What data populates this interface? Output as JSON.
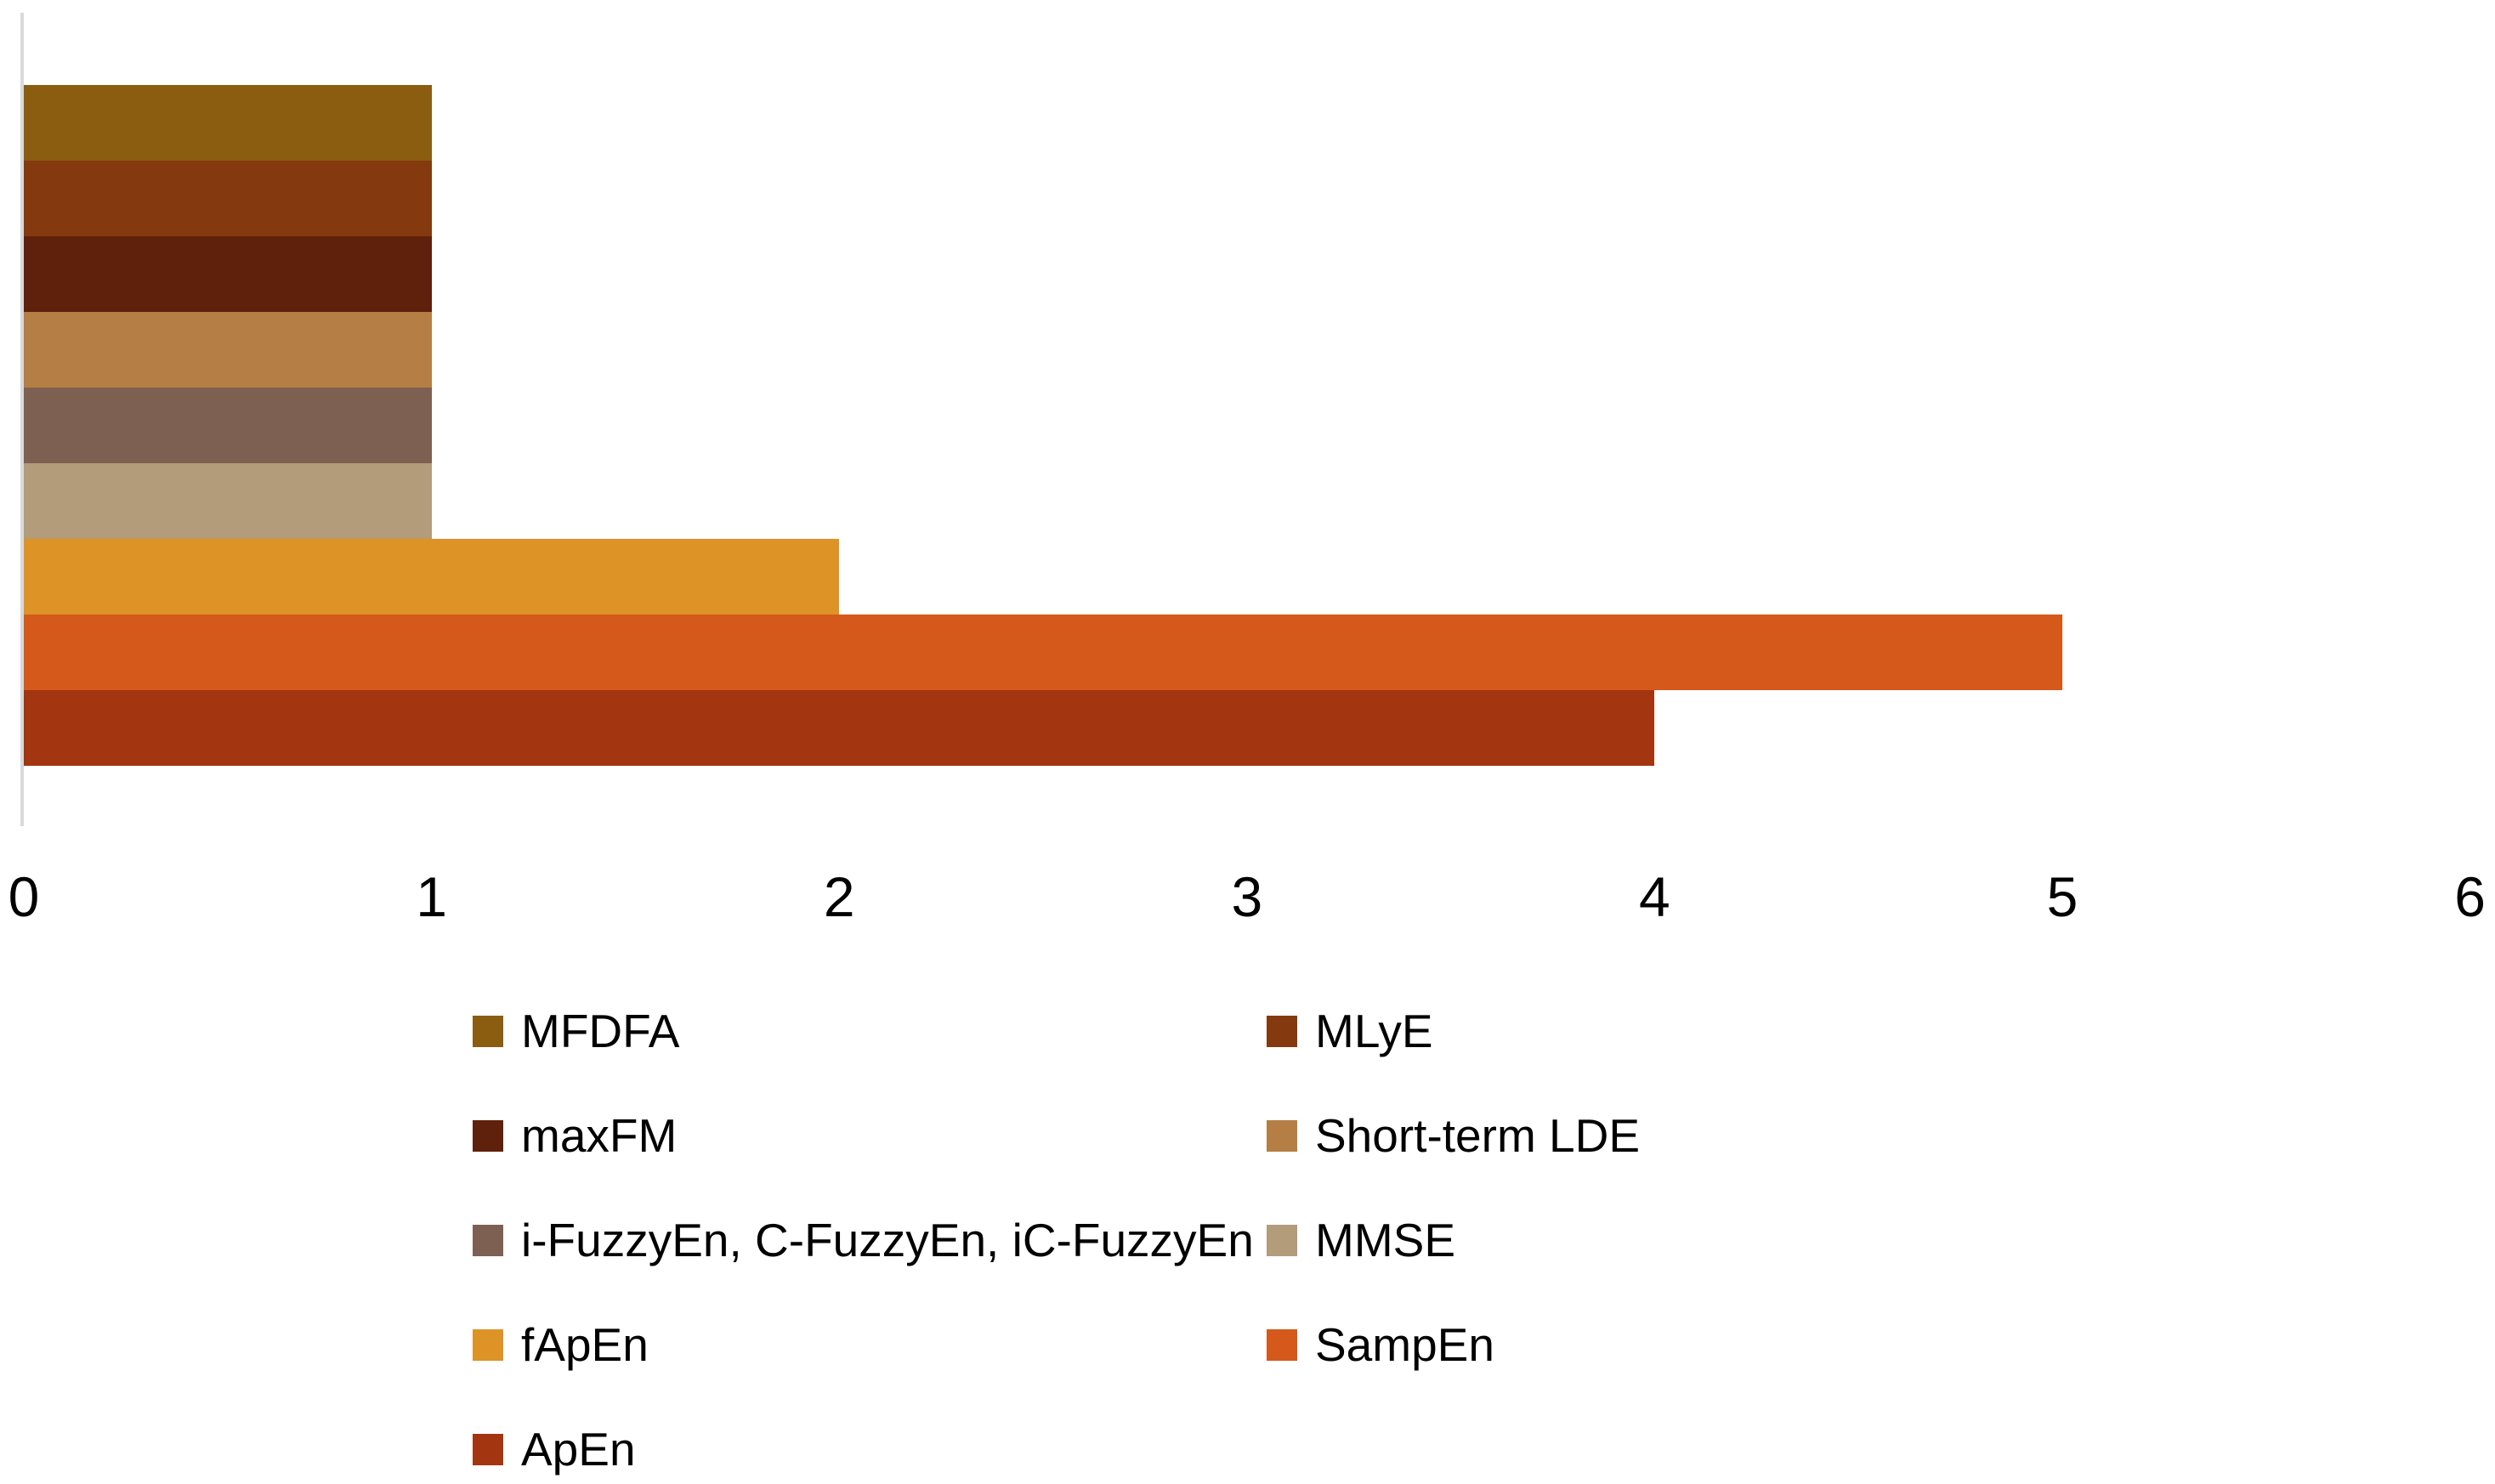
{
  "chart_data": {
    "type": "bar",
    "orientation": "horizontal",
    "title": "",
    "xlabel": "",
    "ylabel": "",
    "xlim": [
      0,
      6
    ],
    "x_ticks": [
      "0",
      "1",
      "2",
      "3",
      "4",
      "5",
      "6"
    ],
    "grid": false,
    "legend_position": "bottom",
    "legend_columns": 2,
    "axis_line_color": "#D9D9D9",
    "text_color": "#000000",
    "series": [
      {
        "name": "MFDFA",
        "value": 1,
        "color": "#8A5D11"
      },
      {
        "name": "MLyE",
        "value": 1,
        "color": "#843A0E"
      },
      {
        "name": "maxFM",
        "value": 1,
        "color": "#5F200C"
      },
      {
        "name": "Short-term LDE",
        "value": 1,
        "color": "#B47E44"
      },
      {
        "name": "i-FuzzyEn, C-FuzzyEn, iC-FuzzyEn",
        "value": 1,
        "color": "#7E6052"
      },
      {
        "name": "MMSE",
        "value": 1,
        "color": "#B29C7A"
      },
      {
        "name": "fApEn",
        "value": 2,
        "color": "#DE9327"
      },
      {
        "name": "SampEn",
        "value": 5,
        "color": "#D4591B"
      },
      {
        "name": "ApEn",
        "value": 4,
        "color": "#A43511"
      }
    ]
  }
}
